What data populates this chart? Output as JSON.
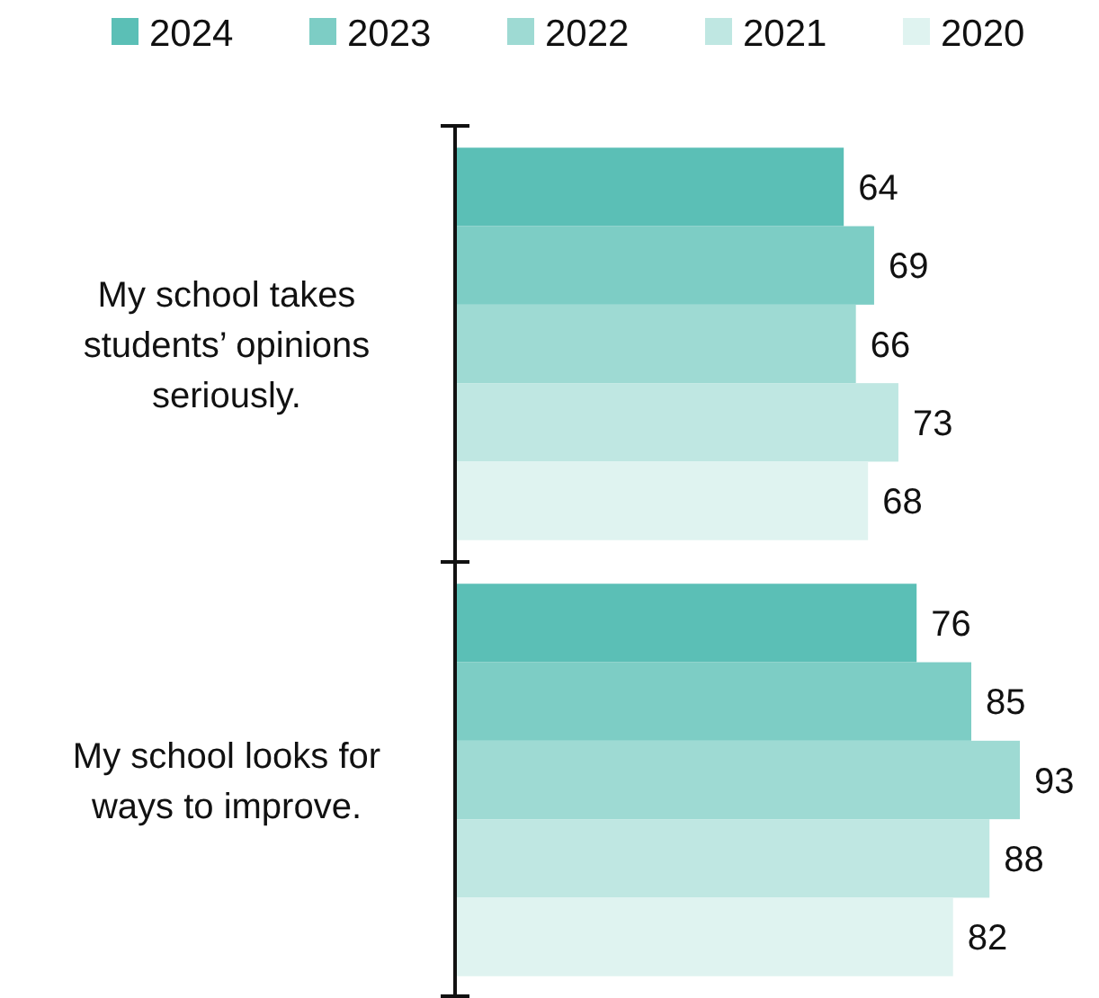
{
  "chart_data": {
    "type": "bar",
    "orientation": "horizontal",
    "categories": [
      "My school takes students’ opinions seriously.",
      "My school looks for ways to improve."
    ],
    "series": [
      {
        "name": "2024",
        "color": "#5bbfb6",
        "values": [
          64,
          76
        ]
      },
      {
        "name": "2023",
        "color": "#7dcdc5",
        "values": [
          69,
          85
        ]
      },
      {
        "name": "2022",
        "color": "#9edad3",
        "values": [
          66,
          93
        ]
      },
      {
        "name": "2021",
        "color": "#bfe7e2",
        "values": [
          73,
          88
        ]
      },
      {
        "name": "2020",
        "color": "#dff3f0",
        "values": [
          68,
          82
        ]
      }
    ],
    "data_labels": true,
    "legend": "top"
  }
}
